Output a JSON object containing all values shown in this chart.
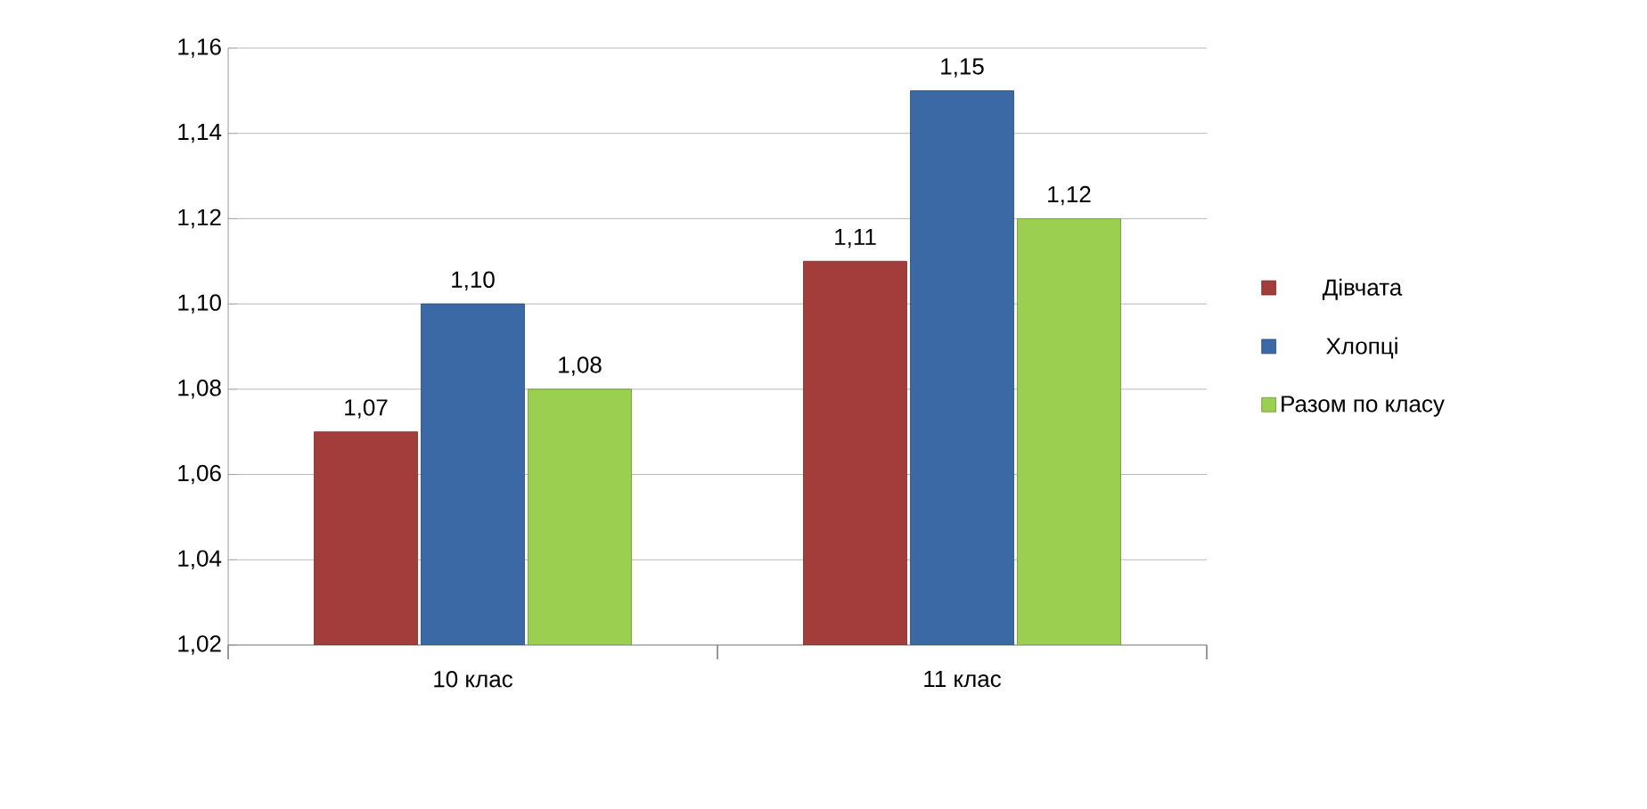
{
  "chart_data": {
    "type": "bar",
    "categories": [
      "10 клас",
      "11 клас"
    ],
    "series": [
      {
        "name": "Дівчата",
        "color": "#a33d3b",
        "values": [
          1.07,
          1.11
        ],
        "value_labels": [
          "1,07",
          "1,11"
        ]
      },
      {
        "name": "Хлопці",
        "color": "#3b69a6",
        "values": [
          1.1,
          1.15
        ],
        "value_labels": [
          "1,10",
          "1,15"
        ]
      },
      {
        "name": "Разом по класу",
        "color": "#9bcf4f",
        "values": [
          1.08,
          1.12
        ],
        "value_labels": [
          "1,08",
          "1,12"
        ]
      }
    ],
    "ylim": [
      1.02,
      1.16
    ],
    "yticks": [
      {
        "value": 1.02,
        "label": "1,02"
      },
      {
        "value": 1.04,
        "label": "1,04"
      },
      {
        "value": 1.06,
        "label": "1,06"
      },
      {
        "value": 1.08,
        "label": "1,08"
      },
      {
        "value": 1.1,
        "label": "1,10"
      },
      {
        "value": 1.12,
        "label": "1,12"
      },
      {
        "value": 1.14,
        "label": "1,14"
      },
      {
        "value": 1.16,
        "label": "1,16"
      }
    ],
    "grid": "y",
    "legend": "right"
  }
}
